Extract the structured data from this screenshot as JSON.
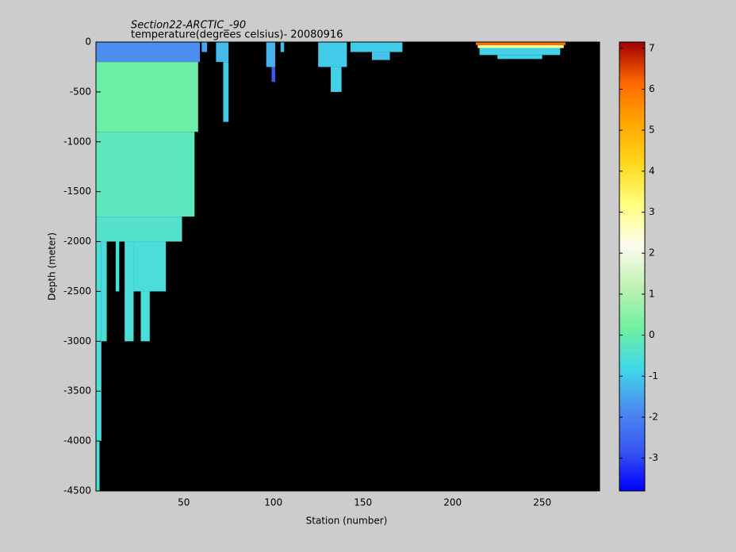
{
  "chart_data": {
    "type": "heatmap",
    "title": "Section22-ARCTIC_-90",
    "subtitle": "temperature(degrees celsius)- 20080916",
    "x_label": "Station (number)",
    "y_label": "Depth (meter)",
    "xlim": [
      1,
      282
    ],
    "xticks": [
      50,
      100,
      150,
      200,
      250
    ],
    "ylim": [
      -4500,
      0
    ],
    "yticks": [
      0,
      -500,
      -1000,
      -1500,
      -2000,
      -2500,
      -3000,
      -3500,
      -4000,
      -4500
    ],
    "clim": [
      -3.8,
      7.15
    ],
    "cticks": [
      -3,
      -2,
      -1,
      0,
      1,
      2,
      3,
      4,
      5,
      6,
      7
    ],
    "colormap": [
      "#0000ff",
      "#3858f0",
      "#4c8cf0",
      "#40d8e8",
      "#70f0a0",
      "#c0f0b0",
      "#fcfcf0",
      "#ffff80",
      "#ffd820",
      "#ffa800",
      "#ff6800",
      "#a00000"
    ],
    "background": "#000000",
    "cells": [
      {
        "x0": 1,
        "x1": 59,
        "top": 0,
        "bottom": -200,
        "value": -1.8
      },
      {
        "x0": 1,
        "x1": 58,
        "top": -200,
        "bottom": -900,
        "value": 0.1
      },
      {
        "x0": 1,
        "x1": 56,
        "top": -900,
        "bottom": -1750,
        "value": -0.2
      },
      {
        "x0": 1,
        "x1": 49,
        "top": -1750,
        "bottom": -2000,
        "value": -0.4
      },
      {
        "x0": 1,
        "x1": 4,
        "top": -2000,
        "bottom": -4000,
        "value": -0.6
      },
      {
        "x0": 1,
        "x1": 3,
        "top": -4000,
        "bottom": -4500,
        "value": -0.6
      },
      {
        "x0": 4,
        "x1": 7,
        "top": -2000,
        "bottom": -3000,
        "value": -0.6
      },
      {
        "x0": 12,
        "x1": 14,
        "top": -2000,
        "bottom": -2500,
        "value": -0.6
      },
      {
        "x0": 17,
        "x1": 22,
        "top": -2000,
        "bottom": -3000,
        "value": -0.6
      },
      {
        "x0": 22,
        "x1": 40,
        "top": -2000,
        "bottom": -2500,
        "value": -0.6
      },
      {
        "x0": 26,
        "x1": 31,
        "top": -2500,
        "bottom": -3000,
        "value": -0.6
      },
      {
        "x0": 60,
        "x1": 63,
        "top": 0,
        "bottom": -100,
        "value": -1.5
      },
      {
        "x0": 68,
        "x1": 75,
        "top": 0,
        "bottom": -200,
        "value": -1.2
      },
      {
        "x0": 72,
        "x1": 75,
        "top": -200,
        "bottom": -800,
        "value": -1.0
      },
      {
        "x0": 96,
        "x1": 101,
        "top": 0,
        "bottom": -250,
        "value": -1.3
      },
      {
        "x0": 99,
        "x1": 101,
        "top": -250,
        "bottom": -400,
        "value": -2.8
      },
      {
        "x0": 104,
        "x1": 106,
        "top": 0,
        "bottom": -100,
        "value": -1.2
      },
      {
        "x0": 125,
        "x1": 141,
        "top": 0,
        "bottom": -250,
        "value": -1.0
      },
      {
        "x0": 132,
        "x1": 138,
        "top": -250,
        "bottom": -500,
        "value": -0.9
      },
      {
        "x0": 143,
        "x1": 172,
        "top": 0,
        "bottom": -100,
        "value": -1.0
      },
      {
        "x0": 155,
        "x1": 165,
        "top": -100,
        "bottom": -180,
        "value": -1.1
      },
      {
        "x0": 215,
        "x1": 260,
        "top": -60,
        "bottom": -130,
        "value": -0.9
      },
      {
        "x0": 225,
        "x1": 250,
        "top": -130,
        "bottom": -170,
        "value": -0.9
      },
      {
        "x0": 214,
        "x1": 262,
        "top": -30,
        "bottom": -60,
        "value": 3.0
      },
      {
        "x0": 213,
        "x1": 263,
        "top": 0,
        "bottom": -30,
        "value": 6.0
      }
    ]
  }
}
